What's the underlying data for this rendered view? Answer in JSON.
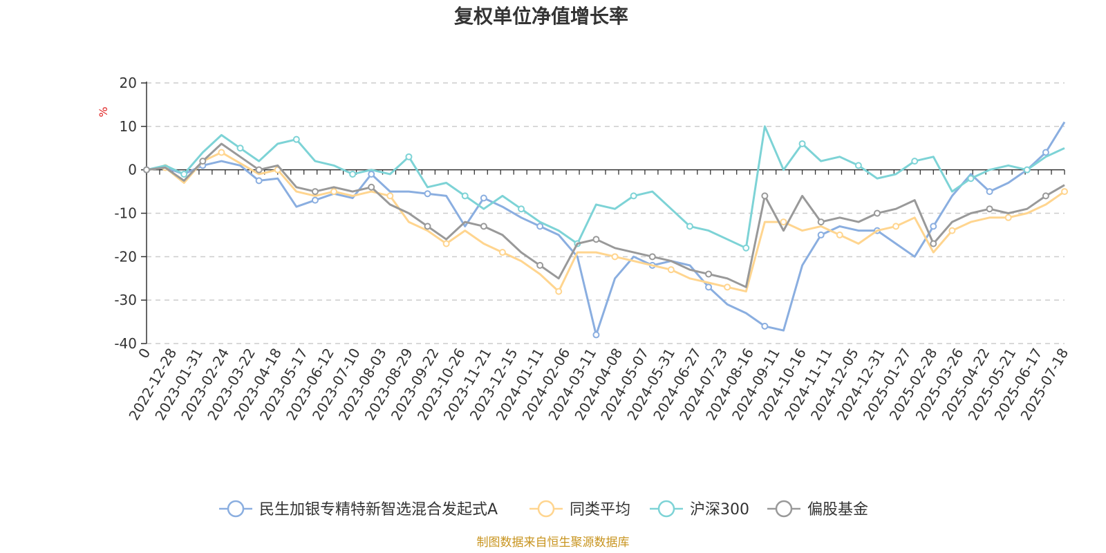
{
  "chart_data": {
    "type": "line",
    "title": "复权单位净值增长率",
    "ylabel": "%",
    "xlabel": "",
    "ylim": [
      -40,
      20
    ],
    "yticks": [
      -40,
      -30,
      -20,
      -10,
      0,
      10,
      20
    ],
    "grid": true,
    "legend_position": "bottom",
    "x_tick_labels": [
      "0",
      "2022-12-28",
      "2023-01-31",
      "2023-02-24",
      "2023-03-22",
      "2023-04-18",
      "2023-05-17",
      "2023-06-12",
      "2023-07-10",
      "2023-08-03",
      "2023-08-29",
      "2023-09-22",
      "2023-10-26",
      "2023-11-21",
      "2023-12-15",
      "2024-01-11",
      "2024-02-06",
      "2024-03-11",
      "2024-04-08",
      "2024-05-07",
      "2024-05-31",
      "2024-06-27",
      "2024-07-23",
      "2024-08-16",
      "2024-09-11",
      "2024-10-16",
      "2024-11-11",
      "2024-12-05",
      "2024-12-31",
      "2025-01-27",
      "2025-02-28",
      "2025-03-26",
      "2025-04-22",
      "2025-05-21",
      "2025-06-17",
      "2025-07-18"
    ],
    "series": [
      {
        "name": "民生加银专精特新智选混合发起式A",
        "color": "#8aaee0",
        "values": [
          0,
          0.5,
          -1,
          1,
          2,
          1,
          -2.5,
          -2,
          -8.5,
          -7,
          -5.5,
          -6.5,
          -1,
          -5,
          -5,
          -5.5,
          -6,
          -13,
          -6.5,
          -8.5,
          -11,
          -13,
          -15,
          -20,
          -38,
          -25,
          -20,
          -22,
          -21,
          -22,
          -27,
          -31,
          -33,
          -36,
          -37,
          -22,
          -15,
          -13,
          -14,
          -14,
          -17,
          -20,
          -13,
          -6,
          -1,
          -5,
          -3,
          0,
          4,
          11
        ]
      },
      {
        "name": "同类平均",
        "color": "#ffd58f",
        "values": [
          0,
          0.5,
          -3,
          2,
          4,
          1.5,
          -1,
          0,
          -5,
          -6,
          -5,
          -6,
          -5,
          -6,
          -12,
          -14,
          -17,
          -14,
          -17,
          -19,
          -21,
          -24,
          -28,
          -19,
          -19,
          -20,
          -21,
          -22,
          -23,
          -25,
          -26,
          -27,
          -28,
          -12,
          -12,
          -14,
          -13,
          -15,
          -17,
          -14,
          -13,
          -11,
          -19,
          -14,
          -12,
          -11,
          -11,
          -10,
          -8,
          -5
        ]
      },
      {
        "name": "沪深300",
        "color": "#7dd3d6",
        "values": [
          0,
          1,
          -1,
          4,
          8,
          5,
          2,
          6,
          7,
          2,
          1,
          -1,
          0,
          -1,
          3,
          -4,
          -3,
          -6,
          -9,
          -6,
          -9,
          -12,
          -14,
          -17,
          -8,
          -9,
          -6,
          -5,
          -9,
          -13,
          -14,
          -16,
          -18,
          10,
          0,
          6,
          2,
          3,
          1,
          -2,
          -1,
          2,
          3,
          -5,
          -2,
          0,
          1,
          0,
          3,
          5
        ]
      },
      {
        "name": "偏股基金",
        "color": "#999999",
        "values": [
          0,
          0.5,
          -2.5,
          2,
          6,
          3,
          0,
          1,
          -4,
          -5,
          -4,
          -5,
          -4,
          -8,
          -10,
          -13,
          -16,
          -12,
          -13,
          -15,
          -19,
          -22,
          -25,
          -17,
          -16,
          -18,
          -19,
          -20,
          -21,
          -23,
          -24,
          -25,
          -27,
          -6,
          -14,
          -6,
          -12,
          -11,
          -12,
          -10,
          -9,
          -7,
          -17,
          -12,
          -10,
          -9,
          -10,
          -9,
          -6,
          -3.5
        ]
      }
    ]
  },
  "footer": {
    "source_text": "制图数据来自恒生聚源数据库"
  }
}
